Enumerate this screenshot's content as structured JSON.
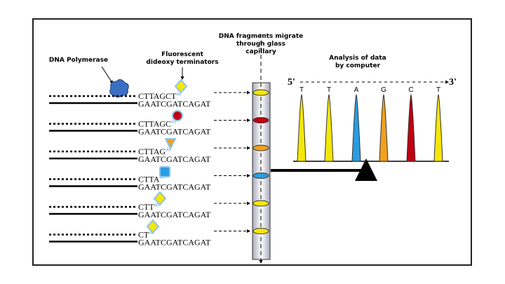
{
  "labels": {
    "polymerase": "DNA Polymerase",
    "terminators": [
      "Fluorescent",
      "dideoxy terminators"
    ],
    "capillary": [
      "DNA fragments migrate",
      "through glass",
      "capillary"
    ],
    "analysis": [
      "Analysis of data",
      "by computer"
    ],
    "five_prime": "5'",
    "three_prime": "3'"
  },
  "fragments": [
    {
      "strand": "CTTAGCT",
      "suffix": "dd",
      "template": "GAATCGATCAGAT"
    },
    {
      "strand": "CTTAGC",
      "suffix": "dd",
      "template": "GAATCGATCAGAT"
    },
    {
      "strand": "CTTAG",
      "suffix": "dd",
      "template": "GAATCGATCAGAT"
    },
    {
      "strand": "CTTA",
      "suffix": "dd",
      "template": "GAATCGATCAGAT"
    },
    {
      "strand": "CTT",
      "suffix": "dd",
      "template": "GAATCGATCAGAT"
    },
    {
      "strand": "CT",
      "suffix": "dd",
      "template": "GAATCGATCAGAT"
    }
  ],
  "peaks": [
    "T",
    "T",
    "A",
    "G",
    "C",
    "T"
  ]
}
